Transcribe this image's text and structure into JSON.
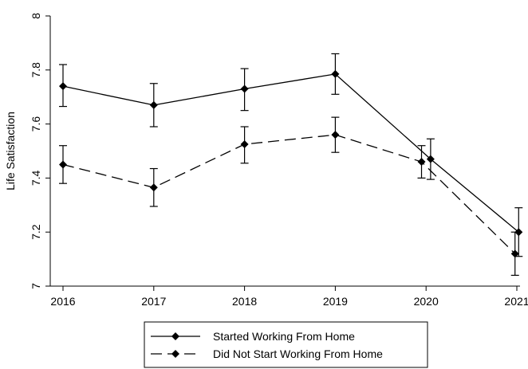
{
  "chart_data": {
    "type": "line",
    "ylabel": "Life Satisfaction",
    "xlabel": "",
    "x": [
      2016,
      2017,
      2018,
      2019,
      2020,
      2021
    ],
    "x_tick_labels": [
      "2016",
      "2017",
      "2018",
      "2019",
      "2020",
      "2021"
    ],
    "ylim": [
      7,
      8
    ],
    "y_ticks": [
      7,
      7.2,
      7.4,
      7.6,
      7.8,
      8
    ],
    "y_tick_labels": [
      "7",
      "7.2",
      "7.4",
      "7.6",
      "7.8",
      "8"
    ],
    "grid": false,
    "legend_position": "bottom",
    "error_bars": true,
    "series": [
      {
        "name": "Started Working From Home",
        "style": "solid",
        "marker": "diamond",
        "color": "#000000",
        "x": [
          2016,
          2017,
          2018,
          2019,
          2020.05,
          2021.02
        ],
        "values": [
          7.74,
          7.67,
          7.73,
          7.785,
          7.47,
          7.2
        ],
        "ci_low": [
          7.665,
          7.59,
          7.65,
          7.71,
          7.395,
          7.11
        ],
        "ci_high": [
          7.82,
          7.75,
          7.805,
          7.86,
          7.545,
          7.29
        ]
      },
      {
        "name": "Did Not Start Working From Home",
        "style": "dashed",
        "marker": "diamond",
        "color": "#000000",
        "x": [
          2016,
          2017,
          2018,
          2019,
          2019.95,
          2020.98
        ],
        "values": [
          7.45,
          7.365,
          7.525,
          7.56,
          7.46,
          7.12
        ],
        "ci_low": [
          7.38,
          7.295,
          7.455,
          7.495,
          7.4,
          7.04
        ],
        "ci_high": [
          7.52,
          7.435,
          7.59,
          7.625,
          7.52,
          7.2
        ]
      }
    ]
  }
}
